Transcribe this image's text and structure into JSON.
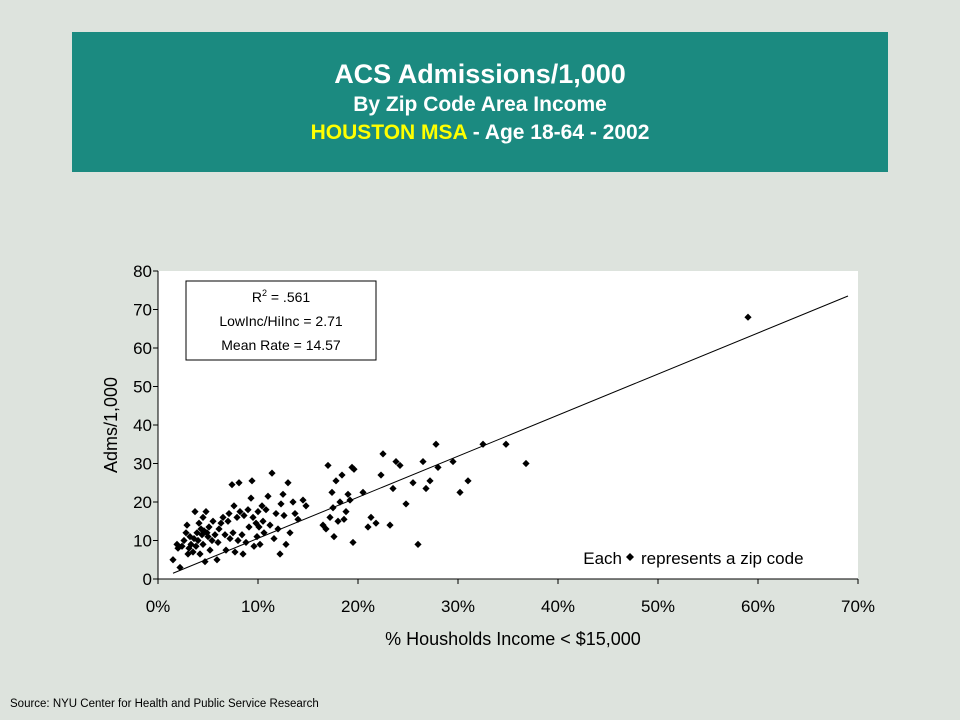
{
  "header": {
    "title": "ACS Admissions/1,000",
    "subtitle": "By Zip Code Area Income",
    "region": "HOUSTON MSA",
    "detail": " - Age 18-64 - 2002"
  },
  "stats_box": {
    "r2_label": "R",
    "r2_sup": "2",
    "r2_value": " = .561",
    "ratio": "LowInc/HiInc = 2.71",
    "mean": "Mean Rate = 14.57"
  },
  "legend": {
    "prefix": "Each",
    "suffix": "represents a zip code"
  },
  "source": "Source:  NYU Center for Health and Public Service Research",
  "colors": {
    "header_bg": "#1b8a80",
    "accent_text": "#ffff00",
    "page_bg": "#dde3dd",
    "plot_bg": "#ffffff",
    "marker": "#000000"
  },
  "chart_data": {
    "type": "scatter",
    "title": "",
    "xlabel": "% Housholds Income < $15,000",
    "ylabel": "Adms/1,000",
    "xlim": [
      0,
      70
    ],
    "ylim": [
      0,
      80
    ],
    "x_ticks": [
      "0%",
      "10%",
      "20%",
      "30%",
      "40%",
      "50%",
      "60%",
      "70%"
    ],
    "y_ticks": [
      "0",
      "10",
      "20",
      "30",
      "40",
      "50",
      "60",
      "70",
      "80"
    ],
    "marker": "diamond",
    "trendline": {
      "x": [
        1.5,
        69.0
      ],
      "y": [
        1.5,
        73.5
      ]
    },
    "points": [
      [
        1.5,
        5.0
      ],
      [
        1.9,
        9.0
      ],
      [
        2.0,
        8.0
      ],
      [
        2.2,
        3.0
      ],
      [
        2.4,
        8.5
      ],
      [
        2.6,
        10.0
      ],
      [
        2.8,
        12.0
      ],
      [
        2.9,
        14.0
      ],
      [
        3.0,
        6.5
      ],
      [
        3.1,
        8.0
      ],
      [
        3.2,
        11.0
      ],
      [
        3.3,
        9.0
      ],
      [
        3.5,
        7.0
      ],
      [
        3.6,
        10.5
      ],
      [
        3.7,
        17.5
      ],
      [
        3.8,
        8.5
      ],
      [
        3.9,
        12.0
      ],
      [
        4.0,
        10.0
      ],
      [
        4.1,
        14.5
      ],
      [
        4.2,
        6.5
      ],
      [
        4.3,
        13.0
      ],
      [
        4.4,
        11.5
      ],
      [
        4.5,
        9.0
      ],
      [
        4.5,
        16.0
      ],
      [
        4.6,
        12.5
      ],
      [
        4.7,
        4.5
      ],
      [
        4.8,
        17.5
      ],
      [
        4.9,
        12.0
      ],
      [
        5.0,
        11.0
      ],
      [
        5.1,
        13.5
      ],
      [
        5.2,
        7.5
      ],
      [
        5.4,
        10.0
      ],
      [
        5.5,
        15.0
      ],
      [
        5.7,
        11.5
      ],
      [
        5.9,
        5.0
      ],
      [
        6.0,
        9.5
      ],
      [
        6.1,
        13.0
      ],
      [
        6.3,
        14.5
      ],
      [
        6.5,
        16.0
      ],
      [
        6.7,
        11.5
      ],
      [
        6.8,
        7.5
      ],
      [
        7.0,
        15.0
      ],
      [
        7.1,
        17.0
      ],
      [
        7.2,
        10.5
      ],
      [
        7.4,
        24.5
      ],
      [
        7.5,
        12.0
      ],
      [
        7.6,
        19.0
      ],
      [
        7.7,
        7.0
      ],
      [
        7.9,
        16.0
      ],
      [
        8.0,
        10.0
      ],
      [
        8.1,
        25.0
      ],
      [
        8.2,
        17.5
      ],
      [
        8.4,
        11.5
      ],
      [
        8.5,
        6.5
      ],
      [
        8.6,
        16.5
      ],
      [
        8.8,
        9.5
      ],
      [
        9.0,
        18.0
      ],
      [
        9.1,
        13.5
      ],
      [
        9.3,
        21.0
      ],
      [
        9.4,
        25.5
      ],
      [
        9.5,
        16.0
      ],
      [
        9.6,
        8.5
      ],
      [
        9.8,
        14.5
      ],
      [
        9.9,
        11.0
      ],
      [
        10.0,
        17.5
      ],
      [
        10.1,
        13.5
      ],
      [
        10.2,
        9.0
      ],
      [
        10.4,
        19.0
      ],
      [
        10.5,
        15.0
      ],
      [
        10.6,
        12.0
      ],
      [
        10.8,
        18.0
      ],
      [
        11.0,
        21.5
      ],
      [
        11.2,
        14.0
      ],
      [
        11.4,
        27.5
      ],
      [
        11.6,
        10.5
      ],
      [
        11.8,
        17.0
      ],
      [
        12.0,
        13.0
      ],
      [
        12.2,
        6.5
      ],
      [
        12.3,
        19.5
      ],
      [
        12.5,
        22.0
      ],
      [
        12.6,
        16.5
      ],
      [
        12.8,
        9.0
      ],
      [
        13.0,
        25.0
      ],
      [
        13.2,
        12.0
      ],
      [
        13.5,
        20.0
      ],
      [
        13.7,
        17.0
      ],
      [
        14.0,
        15.5
      ],
      [
        14.5,
        20.5
      ],
      [
        14.8,
        19.0
      ],
      [
        16.5,
        14.0
      ],
      [
        16.8,
        13.0
      ],
      [
        17.0,
        29.5
      ],
      [
        17.2,
        16.0
      ],
      [
        17.4,
        22.5
      ],
      [
        17.5,
        18.5
      ],
      [
        17.6,
        11.0
      ],
      [
        17.8,
        25.5
      ],
      [
        18.0,
        15.0
      ],
      [
        18.2,
        20.0
      ],
      [
        18.4,
        27.0
      ],
      [
        18.6,
        15.5
      ],
      [
        18.8,
        17.5
      ],
      [
        19.0,
        22.0
      ],
      [
        19.2,
        20.5
      ],
      [
        19.4,
        29.0
      ],
      [
        19.5,
        9.5
      ],
      [
        19.6,
        28.5
      ],
      [
        20.5,
        22.5
      ],
      [
        21.0,
        13.5
      ],
      [
        21.3,
        16.0
      ],
      [
        21.8,
        14.5
      ],
      [
        22.3,
        27.0
      ],
      [
        22.5,
        32.5
      ],
      [
        23.2,
        14.0
      ],
      [
        23.5,
        23.5
      ],
      [
        23.8,
        30.5
      ],
      [
        24.2,
        29.5
      ],
      [
        24.8,
        19.5
      ],
      [
        25.5,
        25.0
      ],
      [
        26.0,
        9.0
      ],
      [
        26.5,
        30.5
      ],
      [
        26.8,
        23.5
      ],
      [
        27.2,
        25.5
      ],
      [
        27.8,
        35.0
      ],
      [
        28.0,
        29.0
      ],
      [
        29.5,
        30.5
      ],
      [
        30.2,
        22.5
      ],
      [
        31.0,
        25.5
      ],
      [
        32.5,
        35.0
      ],
      [
        34.8,
        35.0
      ],
      [
        36.8,
        30.0
      ],
      [
        59.0,
        68.0
      ]
    ]
  }
}
